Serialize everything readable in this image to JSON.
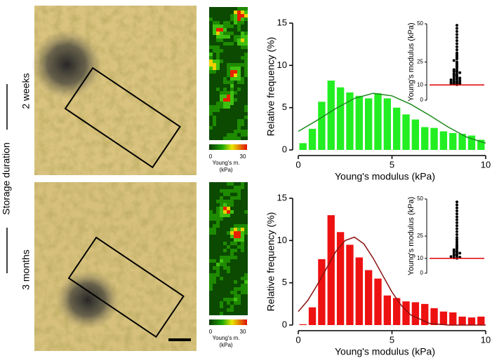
{
  "row_labels": {
    "title": "Storage duration",
    "rows": [
      "2 weeks",
      "3 months"
    ]
  },
  "colorbar": {
    "min": 0,
    "max": 30,
    "label": "Young's m.",
    "unit": "(kPa)"
  },
  "chart_data": [
    {
      "type": "histogram",
      "xlabel": "Young's modulus (kPa)",
      "ylabel": "Relative frequency (%)",
      "bins": [
        0,
        0.5,
        1,
        1.5,
        2,
        2.5,
        3,
        3.5,
        4,
        4.5,
        5,
        5.5,
        6,
        6.5,
        7,
        7.5,
        8,
        8.5,
        9,
        9.5,
        10
      ],
      "values": [
        0.8,
        2.5,
        5.7,
        8.2,
        7.4,
        6.8,
        6.4,
        6.1,
        6.7,
        6.1,
        5.0,
        4.2,
        3.6,
        2.7,
        2.6,
        2.2,
        2.0,
        1.9,
        1.7,
        1.2
      ],
      "color": "#22ee22",
      "xlim": [
        0,
        10
      ],
      "ylim": [
        0,
        15
      ],
      "xticks": [
        0,
        5,
        10
      ],
      "yticks": [
        0,
        5,
        10,
        15
      ],
      "fit": {
        "color": "#1c8a1c",
        "x": [
          0,
          1,
          2,
          3,
          4,
          5,
          6,
          7,
          8,
          9,
          10
        ],
        "values": [
          2.2,
          3.5,
          4.9,
          6.1,
          6.7,
          6.4,
          5.4,
          4.1,
          2.7,
          1.5,
          0.8
        ]
      }
    },
    {
      "type": "swarm",
      "ylabel": "Young's modulus (kPa)",
      "ylim": [
        0,
        50
      ],
      "yticks": [
        0,
        10,
        25,
        50
      ],
      "color": "#000000",
      "reference_line": 10,
      "reference_color": "#e00000",
      "values": [
        10.2,
        10.5,
        10.8,
        11,
        11.2,
        11.5,
        11.8,
        12,
        12.3,
        12.6,
        13,
        13.3,
        13.7,
        14,
        14.5,
        15,
        15.5,
        16,
        16.5,
        17,
        17.5,
        18,
        18.5,
        19,
        19.5,
        20,
        21,
        22,
        23,
        24,
        25,
        26,
        27,
        28,
        29,
        30,
        31,
        33,
        35,
        37,
        39,
        41,
        43,
        45,
        47,
        49
      ]
    },
    {
      "type": "histogram",
      "xlabel": "Young's modulus (kPa)",
      "ylabel": "Relative frequency (%)",
      "bins": [
        0,
        0.5,
        1,
        1.5,
        2,
        2.5,
        3,
        3.5,
        4,
        4.5,
        5,
        5.5,
        6,
        6.5,
        7,
        7.5,
        8,
        8.5,
        9,
        9.5,
        10
      ],
      "values": [
        0.1,
        2.1,
        7.8,
        13.0,
        11.0,
        9.5,
        8.0,
        6.5,
        5.5,
        3.5,
        3.2,
        2.8,
        2.7,
        2.5,
        2.0,
        1.6,
        1.5,
        1.0,
        0.9,
        1.0
      ],
      "color": "#ee1111",
      "xlim": [
        0,
        10
      ],
      "ylim": [
        0,
        15
      ],
      "xticks": [
        0,
        5,
        10
      ],
      "yticks": [
        0,
        5,
        10,
        15
      ],
      "fit": {
        "color": "#8a1010",
        "x": [
          0,
          0.5,
          1,
          1.5,
          2,
          2.5,
          3,
          3.5,
          4,
          4.5,
          5,
          5.5,
          6,
          7,
          8,
          9,
          10
        ],
        "values": [
          1.6,
          2.9,
          4.7,
          6.7,
          8.7,
          10.0,
          10.4,
          9.6,
          7.9,
          5.9,
          3.9,
          2.3,
          1.2,
          0.2,
          0,
          0,
          0
        ]
      }
    },
    {
      "type": "swarm",
      "ylabel": "Young's modulus (kPa)",
      "ylim": [
        0,
        50
      ],
      "yticks": [
        0,
        10,
        25,
        50
      ],
      "color": "#000000",
      "reference_line": 10,
      "reference_color": "#e00000",
      "values": [
        10.1,
        10.4,
        10.8,
        11.2,
        11.6,
        12,
        12.5,
        13,
        13.5,
        14,
        14.5,
        15,
        15.8,
        16.5,
        17.5,
        18.5,
        19.5,
        21,
        22.5,
        24,
        26,
        28,
        30,
        32,
        34,
        36,
        38,
        40,
        42,
        44,
        46,
        48
      ]
    }
  ]
}
